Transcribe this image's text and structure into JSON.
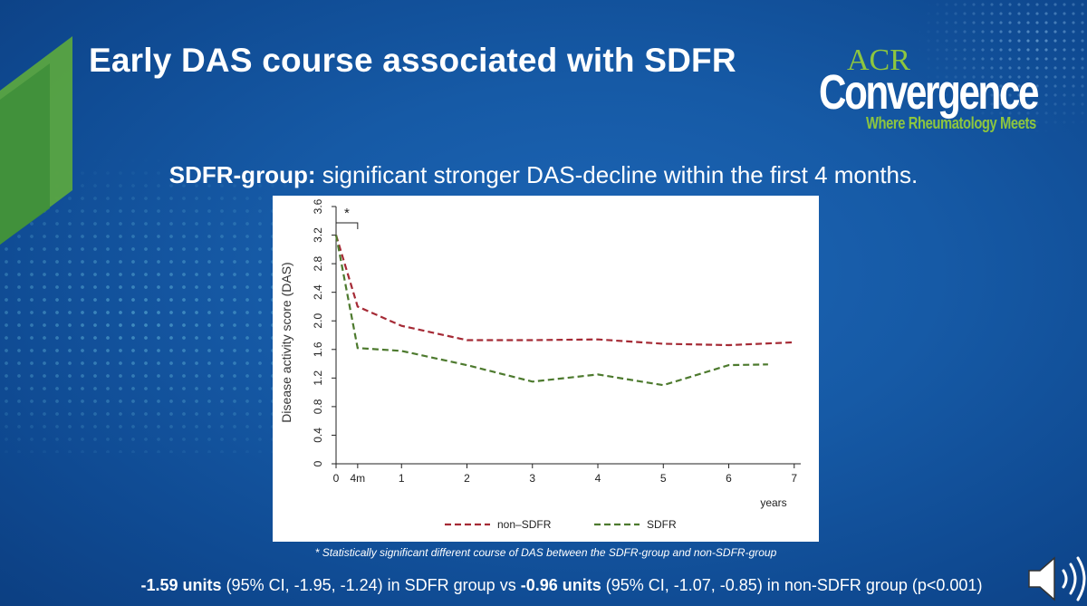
{
  "slide": {
    "title": "Early DAS course associated with SDFR",
    "subtitle_bold": "SDFR-group:",
    "subtitle_rest": " significant stronger DAS-decline within the first 4 months.",
    "footnote": "* Statistically significant different course of DAS between the SDFR-group and non-SDFR-group",
    "bottom_part1_bold": "-1.59 units",
    "bottom_part1_rest": " (95% CI, -1.95, -1.24) in SDFR group vs ",
    "bottom_part2_bold": "-0.96 units",
    "bottom_part2_rest": " (95% CI, -1.07, -0.85) in non-SDFR group (p<0.001)"
  },
  "logo": {
    "acr": "ACR",
    "convergence": "Convergence",
    "tagline": "Where Rheumatology Meets",
    "green_color": "#8dc63f"
  },
  "icons": {
    "speaker": "speaker-icon"
  },
  "chart_data": {
    "type": "line",
    "title": "",
    "xlabel": "years",
    "ylabel": "Disease activity score (DAS)",
    "xlim": [
      0,
      7.1
    ],
    "ylim": [
      0,
      3.6
    ],
    "x_ticks": [
      {
        "v": 0,
        "label": "0"
      },
      {
        "v": 0.33,
        "label": "4m"
      },
      {
        "v": 1,
        "label": "1"
      },
      {
        "v": 2,
        "label": "2"
      },
      {
        "v": 3,
        "label": "3"
      },
      {
        "v": 4,
        "label": "4"
      },
      {
        "v": 5,
        "label": "5"
      },
      {
        "v": 6,
        "label": "6"
      },
      {
        "v": 7,
        "label": "7"
      }
    ],
    "y_ticks": [
      "0",
      "0.4",
      "0.8",
      "1.2",
      "1.6",
      "2.0",
      "2.4",
      "2.8",
      "3.2",
      "3.6"
    ],
    "series": [
      {
        "name": "non–SDFR",
        "color": "#a52a35",
        "dash": "dashed",
        "x": [
          0,
          0.33,
          1,
          2,
          3,
          4,
          5,
          6,
          7
        ],
        "y": [
          3.2,
          2.2,
          1.93,
          1.73,
          1.73,
          1.74,
          1.68,
          1.66,
          1.7
        ]
      },
      {
        "name": "SDFR",
        "color": "#4d7a2e",
        "dash": "dashed",
        "x": [
          0,
          0.33,
          1,
          2,
          3,
          4,
          5,
          6,
          6.6
        ],
        "y": [
          3.2,
          1.62,
          1.58,
          1.38,
          1.15,
          1.25,
          1.1,
          1.38,
          1.39
        ]
      }
    ],
    "annotation": {
      "text": "*",
      "x_from": 0,
      "x_to": 0.33
    },
    "legend_position": "bottom"
  }
}
